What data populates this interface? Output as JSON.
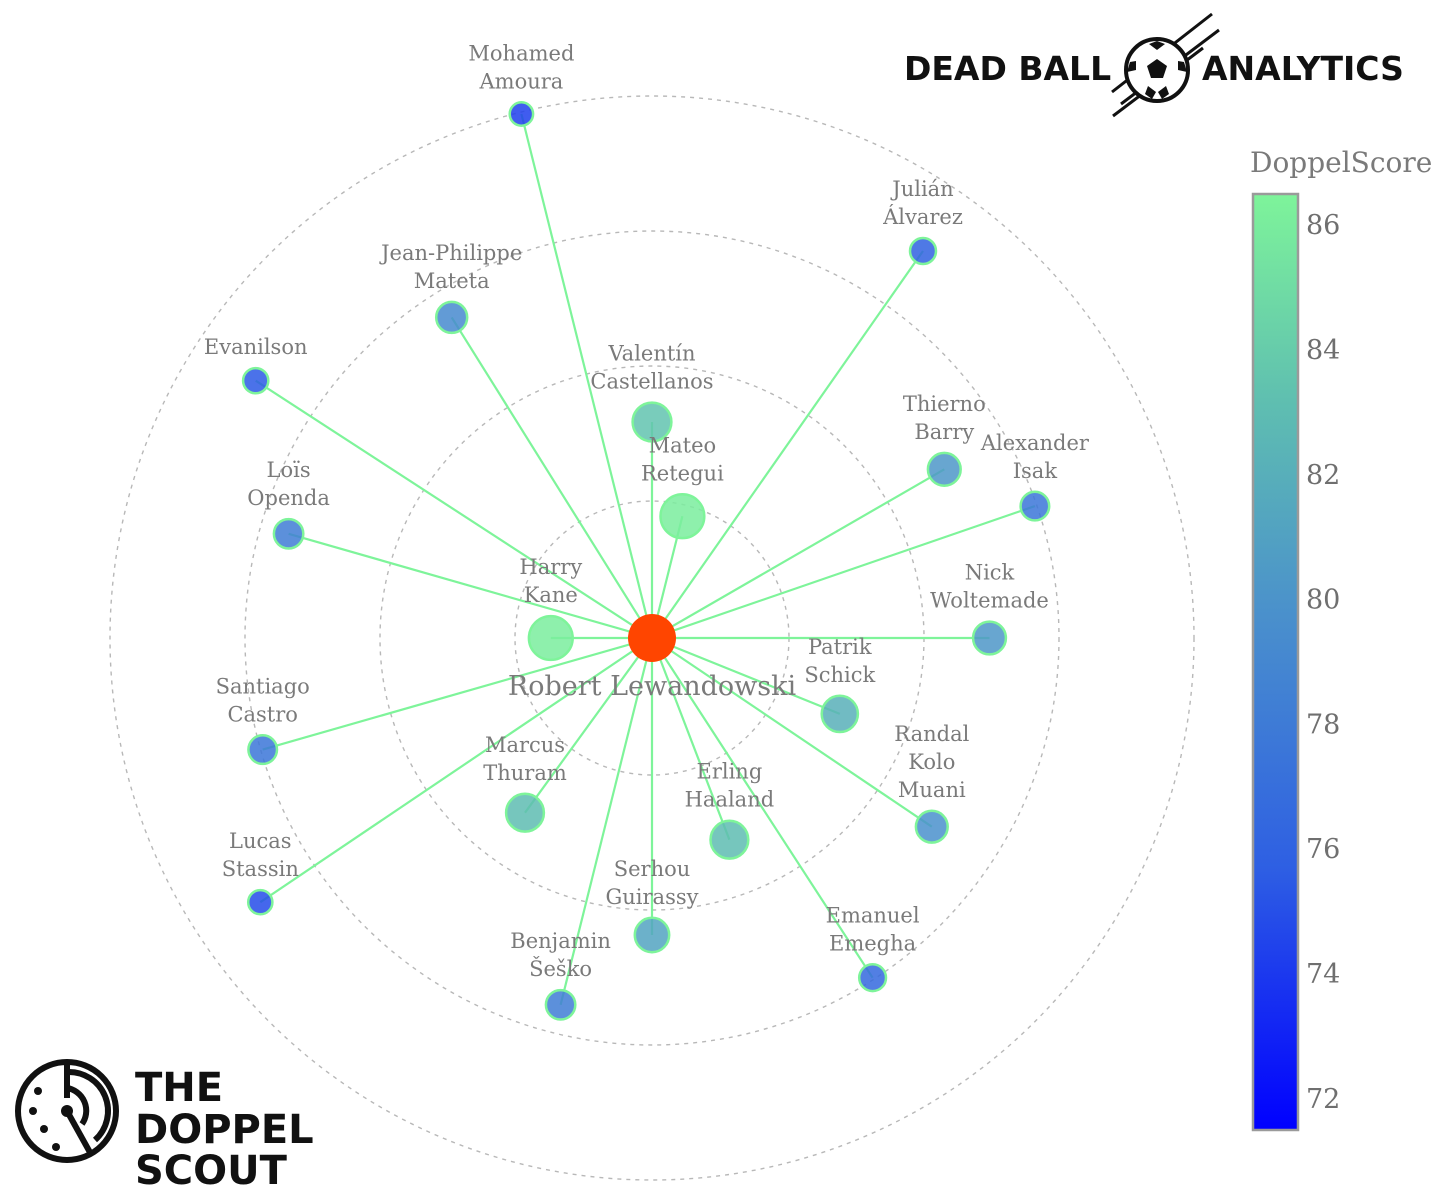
{
  "branding": {
    "top_left_word": "DEAD BALL",
    "top_right_word": "ANALYTICS",
    "bottom_lines": [
      "THE",
      "DOPPEL",
      "SCOUT"
    ],
    "ball_icon": "soccer-ball-icon",
    "radar_icon": "radar-icon"
  },
  "chart_data": {
    "type": "radial-network",
    "center_player": "Robert Lewandowski",
    "center_color": "#ff4500",
    "edge_color": "#7ef49a",
    "colorbar": {
      "title": "DoppelScore",
      "ticks": [
        86,
        84,
        82,
        80,
        78,
        76,
        74,
        72
      ],
      "range": [
        71.5,
        86.5
      ],
      "colors": [
        "#0000ff",
        "#2e5fe3",
        "#4a90cc",
        "#5fbfb0",
        "#7ef49a"
      ]
    },
    "grid": "dashed concentric rings",
    "nodes": [
      {
        "name": [
          "Harry",
          "Kane"
        ],
        "score": 86,
        "angle_deg": 180,
        "ring": 0.75
      },
      {
        "name": [
          "Mateo",
          "Retegui"
        ],
        "score": 86,
        "angle_deg": 76,
        "ring": 0.93
      },
      {
        "name": [
          "Valentín",
          "Castellanos"
        ],
        "score": 83,
        "angle_deg": 90,
        "ring": 1.6
      },
      {
        "name": [
          "Patrik",
          "Schick"
        ],
        "score": 81.5,
        "angle_deg": -22,
        "ring": 1.5
      },
      {
        "name": [
          "Marcus",
          "Thuram"
        ],
        "score": 82.5,
        "angle_deg": -126,
        "ring": 1.6
      },
      {
        "name": [
          "Erling",
          "Haaland"
        ],
        "score": 82.5,
        "angle_deg": -69,
        "ring": 1.6
      },
      {
        "name": [
          "Serhou",
          "Guirassy"
        ],
        "score": 80.5,
        "angle_deg": -90,
        "ring": 2.2
      },
      {
        "name": [
          "Thierno",
          "Barry"
        ],
        "score": 79.5,
        "angle_deg": 30,
        "ring": 2.5
      },
      {
        "name": [
          "Nick",
          "Woltemade"
        ],
        "score": 79.5,
        "angle_deg": 0,
        "ring": 2.5
      },
      {
        "name": [
          "Randal",
          "Kolo",
          "Muani"
        ],
        "score": 79,
        "angle_deg": -34,
        "ring": 2.5
      },
      {
        "name": [
          "Jean-Philippe",
          "Mateta"
        ],
        "score": 78.5,
        "angle_deg": 122,
        "ring": 2.8
      },
      {
        "name": [
          "Loïs",
          "Openda"
        ],
        "score": 77.5,
        "angle_deg": 164,
        "ring": 2.8
      },
      {
        "name": [
          "Benjamin",
          "Šeško"
        ],
        "score": 77.5,
        "angle_deg": -104,
        "ring": 2.8
      },
      {
        "name": [
          "Santiago",
          "Castro"
        ],
        "score": 77,
        "angle_deg": -164,
        "ring": 3.0
      },
      {
        "name": [
          "Alexander",
          "Isak"
        ],
        "score": 77,
        "angle_deg": 19,
        "ring": 3.0
      },
      {
        "name": [
          "Emanuel",
          "Emegha"
        ],
        "score": 76,
        "angle_deg": -57,
        "ring": 3.0
      },
      {
        "name": [
          "Julián",
          "Álvarez"
        ],
        "score": 75.5,
        "angle_deg": 55,
        "ring": 3.5
      },
      {
        "name": [
          "Evanilson"
        ],
        "score": 75,
        "angle_deg": 147,
        "ring": 3.5
      },
      {
        "name": [
          "Lucas",
          "Stassin"
        ],
        "score": 74.5,
        "angle_deg": -146,
        "ring": 3.5
      },
      {
        "name": [
          "Mohamed",
          "Amoura"
        ],
        "score": 74,
        "angle_deg": 104,
        "ring": 4.0
      }
    ]
  }
}
